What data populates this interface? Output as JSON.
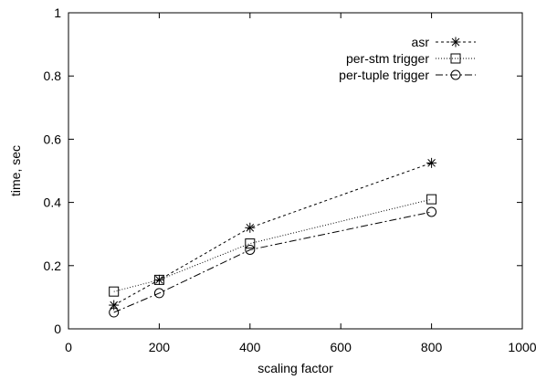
{
  "chart_data": {
    "type": "line",
    "title": "",
    "xlabel": "scaling factor",
    "ylabel": "time, sec",
    "xlim": [
      0,
      1000
    ],
    "ylim": [
      0,
      1
    ],
    "x_ticks": [
      0,
      200,
      400,
      600,
      800,
      1000
    ],
    "y_ticks": [
      0,
      0.2,
      0.4,
      0.6,
      0.8,
      1
    ],
    "x_tick_labels": [
      "0",
      "200",
      "400",
      "600",
      "800",
      "1000"
    ],
    "y_tick_labels": [
      "0",
      "0.2",
      "0.4",
      "0.6",
      "0.8",
      "1"
    ],
    "grid": false,
    "legend_position": "top-right",
    "x": [
      100,
      200,
      400,
      800
    ],
    "series": [
      {
        "name": "asr",
        "values": [
          0.075,
          0.155,
          0.32,
          0.525
        ],
        "marker": "star",
        "dash": "3,3",
        "color": "#000000"
      },
      {
        "name": "per-stm trigger",
        "values": [
          0.118,
          0.155,
          0.27,
          0.41
        ],
        "marker": "square",
        "dash": "1,2",
        "color": "#000000"
      },
      {
        "name": "per-tuple trigger",
        "values": [
          0.052,
          0.113,
          0.25,
          0.37
        ],
        "marker": "circle",
        "dash": "8,3,2,3",
        "color": "#000000"
      }
    ]
  }
}
